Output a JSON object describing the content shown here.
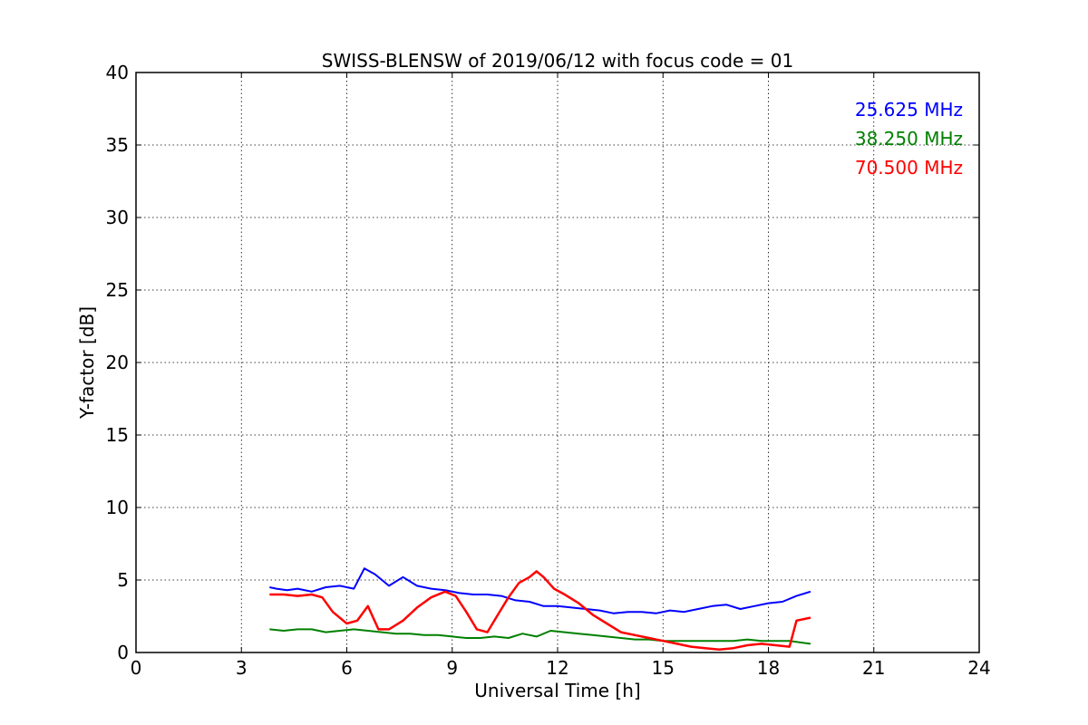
{
  "chart_data": {
    "type": "line",
    "title": "SWISS-BLENSW of 2019/06/12 with focus code = 01",
    "xlabel": "Universal Time [h]",
    "ylabel": "Y-factor [dB]",
    "xlim": [
      0,
      24
    ],
    "ylim": [
      0,
      40
    ],
    "xticks": [
      0,
      3,
      6,
      9,
      12,
      15,
      18,
      21,
      24
    ],
    "yticks": [
      0,
      5,
      10,
      15,
      20,
      25,
      30,
      35,
      40
    ],
    "xtick_labels": [
      "0",
      "3",
      "6",
      "9",
      "12",
      "15",
      "18",
      "21",
      "24"
    ],
    "ytick_labels": [
      "0",
      "5",
      "10",
      "15",
      "20",
      "25",
      "30",
      "35",
      "40"
    ],
    "grid": true,
    "legend_position": "top-right",
    "series": [
      {
        "name": "25.625 MHz",
        "color": "#0000ff",
        "x": [
          3.8,
          4.0,
          4.3,
          4.6,
          5.0,
          5.4,
          5.8,
          6.2,
          6.5,
          6.8,
          7.2,
          7.6,
          8.0,
          8.4,
          8.8,
          9.2,
          9.6,
          10.0,
          10.4,
          10.8,
          11.2,
          11.6,
          12.0,
          12.4,
          12.8,
          13.2,
          13.6,
          14.0,
          14.4,
          14.8,
          15.2,
          15.6,
          16.0,
          16.4,
          16.8,
          17.2,
          17.6,
          18.0,
          18.4,
          18.8,
          19.2
        ],
        "y": [
          4.5,
          4.4,
          4.3,
          4.4,
          4.2,
          4.5,
          4.6,
          4.4,
          5.8,
          5.4,
          4.6,
          5.2,
          4.6,
          4.4,
          4.3,
          4.1,
          4.0,
          4.0,
          3.9,
          3.6,
          3.5,
          3.2,
          3.2,
          3.1,
          3.0,
          2.9,
          2.7,
          2.8,
          2.8,
          2.7,
          2.9,
          2.8,
          3.0,
          3.2,
          3.3,
          3.0,
          3.2,
          3.4,
          3.5,
          3.9,
          4.2
        ]
      },
      {
        "name": "38.250 MHz",
        "color": "#008000",
        "x": [
          3.8,
          4.2,
          4.6,
          5.0,
          5.4,
          5.8,
          6.2,
          6.6,
          7.0,
          7.4,
          7.8,
          8.2,
          8.6,
          9.0,
          9.4,
          9.8,
          10.2,
          10.6,
          11.0,
          11.4,
          11.8,
          12.2,
          12.6,
          13.0,
          13.4,
          13.8,
          14.2,
          14.6,
          15.0,
          15.4,
          15.8,
          16.2,
          16.6,
          17.0,
          17.4,
          17.8,
          18.2,
          18.6,
          19.2
        ],
        "y": [
          1.6,
          1.5,
          1.6,
          1.6,
          1.4,
          1.5,
          1.6,
          1.5,
          1.4,
          1.3,
          1.3,
          1.2,
          1.2,
          1.1,
          1.0,
          1.0,
          1.1,
          1.0,
          1.3,
          1.1,
          1.5,
          1.4,
          1.3,
          1.2,
          1.1,
          1.0,
          0.9,
          0.9,
          0.8,
          0.8,
          0.8,
          0.8,
          0.8,
          0.8,
          0.9,
          0.8,
          0.8,
          0.8,
          0.6
        ]
      },
      {
        "name": "70.500 MHz",
        "color": "#ff0000",
        "x": [
          3.8,
          4.2,
          4.6,
          5.0,
          5.3,
          5.6,
          6.0,
          6.3,
          6.6,
          6.9,
          7.2,
          7.6,
          8.0,
          8.4,
          8.8,
          9.1,
          9.4,
          9.7,
          10.0,
          10.3,
          10.6,
          10.9,
          11.2,
          11.4,
          11.6,
          11.9,
          12.2,
          12.6,
          13.0,
          13.4,
          13.8,
          14.2,
          14.6,
          15.0,
          15.4,
          15.8,
          16.2,
          16.6,
          17.0,
          17.4,
          17.8,
          18.2,
          18.6,
          18.8,
          19.2
        ],
        "y": [
          4.0,
          4.0,
          3.9,
          4.0,
          3.8,
          2.8,
          2.0,
          2.2,
          3.2,
          1.6,
          1.6,
          2.2,
          3.1,
          3.8,
          4.2,
          3.9,
          2.8,
          1.6,
          1.4,
          2.6,
          3.8,
          4.8,
          5.2,
          5.6,
          5.2,
          4.4,
          4.0,
          3.4,
          2.6,
          2.0,
          1.4,
          1.2,
          1.0,
          0.8,
          0.6,
          0.4,
          0.3,
          0.2,
          0.3,
          0.5,
          0.6,
          0.5,
          0.4,
          2.2,
          2.4
        ]
      }
    ]
  }
}
